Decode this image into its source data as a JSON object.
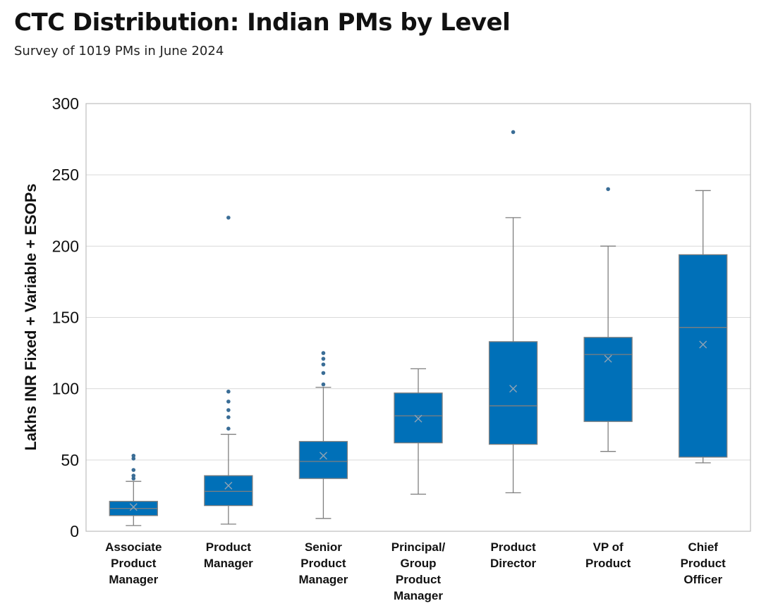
{
  "title": "CTC Distribution: Indian PMs by Level",
  "subtitle": "Survey of 1019 PMs in June 2024",
  "colors": {
    "box": "#0070b8",
    "line": "#7f7f7f",
    "outlier": "#3a6d96",
    "grid": "#d9d9d9",
    "frame": "#bfbfbf"
  },
  "chart_data": {
    "type": "box",
    "ylabel": "Lakhs INR Fixed + Variable + ESOPs",
    "ylim": [
      0,
      300
    ],
    "yticks": [
      0,
      50,
      100,
      150,
      200,
      250,
      300
    ],
    "grid": true,
    "categories": [
      {
        "label": [
          "Associate",
          "Product",
          "Manager"
        ],
        "whisker_low": 4,
        "q1": 11,
        "median": 16,
        "q3": 21,
        "whisker_high": 35,
        "mean": 17,
        "outliers": [
          37,
          39,
          43,
          51,
          53
        ]
      },
      {
        "label": [
          "Product",
          "Manager"
        ],
        "whisker_low": 5,
        "q1": 18,
        "median": 28,
        "q3": 39,
        "whisker_high": 68,
        "mean": 32,
        "outliers": [
          72,
          80,
          85,
          91,
          98,
          220
        ]
      },
      {
        "label": [
          "Senior",
          "Product",
          "Manager"
        ],
        "whisker_low": 9,
        "q1": 37,
        "median": 49,
        "q3": 63,
        "whisker_high": 101,
        "mean": 53,
        "outliers": [
          103,
          111,
          117,
          121,
          125
        ]
      },
      {
        "label": [
          "Principal/",
          "Group",
          "Product",
          "Manager"
        ],
        "whisker_low": 26,
        "q1": 62,
        "median": 81,
        "q3": 97,
        "whisker_high": 114,
        "mean": 79,
        "outliers": []
      },
      {
        "label": [
          "Product",
          "Director"
        ],
        "whisker_low": 27,
        "q1": 61,
        "median": 88,
        "q3": 133,
        "whisker_high": 220,
        "mean": 100,
        "outliers": [
          280
        ]
      },
      {
        "label": [
          "VP of",
          "Product"
        ],
        "whisker_low": 56,
        "q1": 77,
        "median": 124,
        "q3": 136,
        "whisker_high": 200,
        "mean": 121,
        "outliers": [
          240
        ]
      },
      {
        "label": [
          "Chief",
          "Product",
          "Officer"
        ],
        "whisker_low": 48,
        "q1": 52,
        "median": 143,
        "q3": 194,
        "whisker_high": 239,
        "mean": 131,
        "outliers": []
      }
    ]
  }
}
